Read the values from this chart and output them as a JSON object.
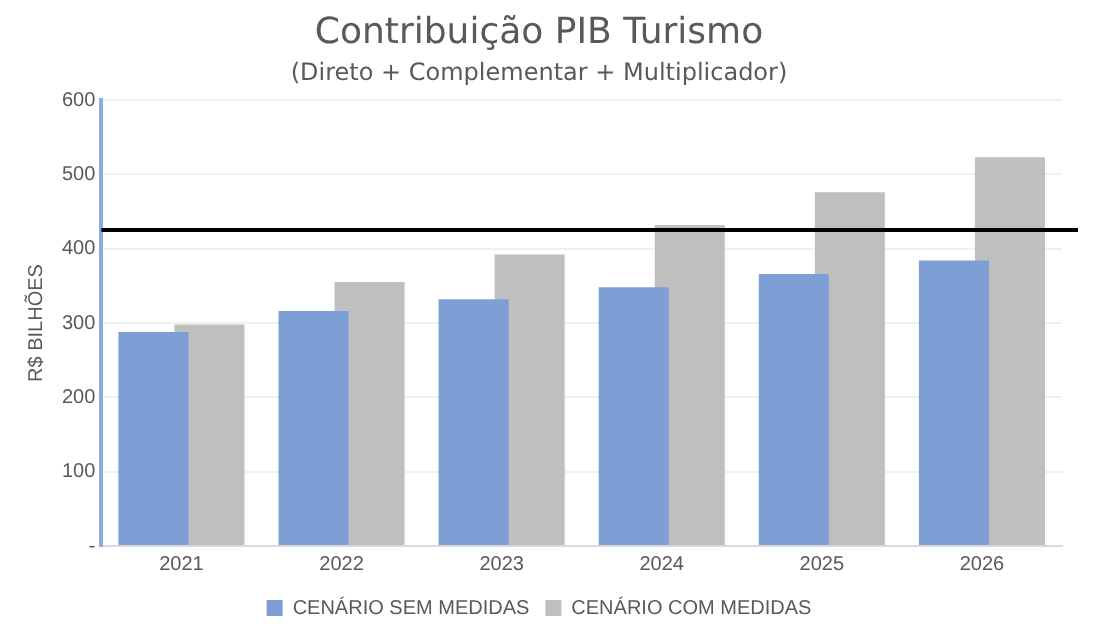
{
  "chart_data": {
    "type": "bar",
    "title": "Contribuição PIB Turismo",
    "subtitle": "(Direto + Complementar + Multiplicador)",
    "ylabel": "R$ BILHÕES",
    "categories": [
      "2021",
      "2022",
      "2023",
      "2024",
      "2025",
      "2026"
    ],
    "series": [
      {
        "name": "CENÁRIO SEM MEDIDAS",
        "color": "#7d9fd6",
        "values": [
          288,
          316,
          332,
          348,
          366,
          384
        ]
      },
      {
        "name": "CENÁRIO COM MEDIDAS",
        "color": "#bfbfbf",
        "values": [
          298,
          355,
          392,
          432,
          476,
          523
        ]
      }
    ],
    "ylim": [
      0,
      600
    ],
    "yticks": [
      {
        "value": 0,
        "label": "-"
      },
      100,
      200,
      300,
      400,
      500,
      600
    ],
    "ref_lines": [
      {
        "axis": "y",
        "value": 425,
        "color": "#000000"
      }
    ],
    "grid": "y",
    "legend": "bottom"
  }
}
